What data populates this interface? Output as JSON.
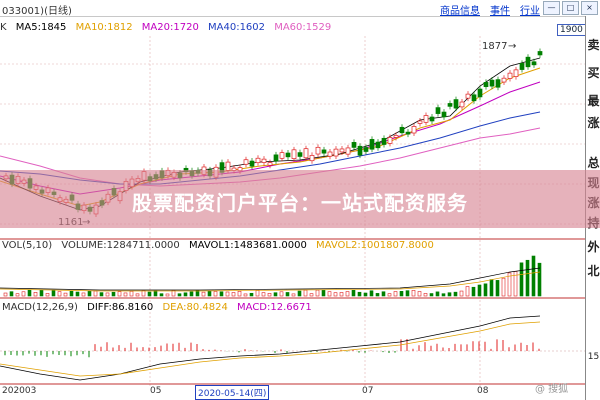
{
  "title": "033001)(日线)",
  "links": [
    "商品信息",
    "事件",
    "行业"
  ],
  "window_controls": [
    "—",
    "□",
    "×"
  ],
  "ma_legend": [
    {
      "label": "K",
      "color": "#333333"
    },
    {
      "label": "MA5:1845",
      "color": "#000000"
    },
    {
      "label": "MA10:1812",
      "color": "#e0a000"
    },
    {
      "label": "MA20:1720",
      "color": "#c000c0"
    },
    {
      "label": "MA40:1602",
      "color": "#2040c0"
    },
    {
      "label": "MA60:1529",
      "color": "#e060c0"
    }
  ],
  "price_axis_value": "1900",
  "annotations": {
    "high": "1877",
    "low": "1161"
  },
  "volume_legend": [
    {
      "label": "VOL(5,10)",
      "color": "#333333"
    },
    {
      "label": "VOLUME:1284711.0000",
      "color": "#333333"
    },
    {
      "label": "MAVOL1:1483681.0000",
      "color": "#000000"
    },
    {
      "label": "MAVOL2:1001807.8000",
      "color": "#e0a000"
    }
  ],
  "macd_legend": [
    {
      "label": "MACD(12,26,9)",
      "color": "#333333"
    },
    {
      "label": "DIFF:86.8160",
      "color": "#000000"
    },
    {
      "label": "DEA:80.4824",
      "color": "#e0a000"
    },
    {
      "label": "MACD:12.6671",
      "color": "#c000c0"
    }
  ],
  "date_labels": [
    "202003",
    "05",
    "07",
    "08"
  ],
  "selected_date": "2020-05-14(四)",
  "right_tabs": [
    "卖",
    "买",
    "最",
    "涨",
    "总",
    "现",
    "涨",
    "持",
    "外",
    "北",
    "15"
  ],
  "banner_text": "股票配资门户平台：一站式配资服务",
  "watermark": "@ 搜狐",
  "colors": {
    "up": "#e02020",
    "down": "#008000"
  }
}
